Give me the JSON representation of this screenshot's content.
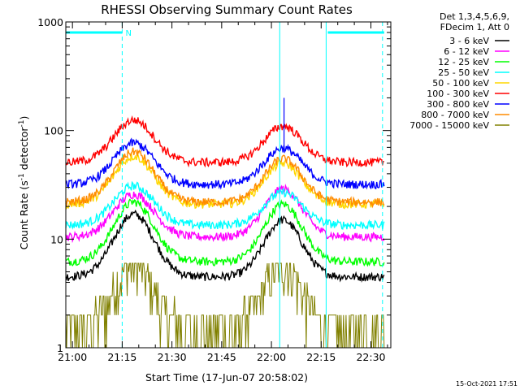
{
  "chart_data": {
    "type": "line",
    "title": "RHESSI Observing Summary Count Rates",
    "xlabel": "Start Time (17-Jun-07 20:58:02)",
    "ylabel_base": "Count Rate (s",
    "ylabel_sup": "-1",
    "ylabel_mid": " detector",
    "ylabel_sup2": "-1",
    "ylabel_end": ")",
    "xlim": [
      -2,
      96
    ],
    "ylim": [
      1,
      1000
    ],
    "yscale": "log",
    "x_ticks": [
      {
        "value": 0,
        "label": "21:00"
      },
      {
        "value": 15,
        "label": "21:15"
      },
      {
        "value": 30,
        "label": "21:30"
      },
      {
        "value": 45,
        "label": "21:45"
      },
      {
        "value": 60,
        "label": "22:00"
      },
      {
        "value": 75,
        "label": "22:15"
      },
      {
        "value": 90,
        "label": "22:30"
      }
    ],
    "y_ticks": [
      {
        "value": 1,
        "label": "1"
      },
      {
        "value": 10,
        "label": "10"
      },
      {
        "value": 100,
        "label": "100"
      },
      {
        "value": 1000,
        "label": "1000"
      }
    ],
    "legend_header": [
      "Det 1,3,4,5,6,9,",
      "FDecim 1, Att 0"
    ],
    "legend_placement": "right",
    "series": [
      {
        "name": "3 - 6 keV",
        "color": "#000000",
        "base": 4.5,
        "peak1": 17,
        "peak2": 15
      },
      {
        "name": "6 - 12 keV",
        "color": "#ff00ff",
        "base": 10.5,
        "peak1": 26,
        "peak2": 29
      },
      {
        "name": "12 - 25 keV",
        "color": "#00ff00",
        "base": 6.2,
        "peak1": 22,
        "peak2": 21
      },
      {
        "name": "25 - 50 keV",
        "color": "#00ffff",
        "base": 13.5,
        "peak1": 31,
        "peak2": 27
      },
      {
        "name": "50 - 100 keV",
        "color": "#ffd700",
        "base": 21,
        "peak1": 58,
        "peak2": 50
      },
      {
        "name": "100 - 300 keV",
        "color": "#ff0000",
        "base": 51,
        "peak1": 125,
        "peak2": 110
      },
      {
        "name": "300 - 800 keV",
        "color": "#0000ff",
        "base": 32,
        "peak1": 77,
        "peak2": 69
      },
      {
        "name": "800 - 7000 keV",
        "color": "#ff8c00",
        "base": 22,
        "peak1": 64,
        "peak2": 55
      },
      {
        "name": "7000 - 15000 keV",
        "color": "#808000",
        "base": 1.4,
        "peak1": 5.5,
        "peak2": 5.5
      }
    ],
    "peak_times": [
      18.5,
      63.5
    ],
    "segments": [
      [
        -2,
        94
      ]
    ],
    "annotations": [
      {
        "label": "N",
        "x": 16,
        "y": 800,
        "color": "#00ffff"
      }
    ],
    "horizontal_bars": [
      {
        "x1": -2,
        "x2": 15,
        "y": 800,
        "color": "#00ffff"
      },
      {
        "x1": 77,
        "x2": 94,
        "y": 800,
        "color": "#00ffff"
      }
    ],
    "vertical_lines": [
      {
        "x": -2,
        "style": "solid",
        "color": "#00ffff"
      },
      {
        "x": 15,
        "style": "dashed",
        "color": "#00ffff"
      },
      {
        "x": 62.5,
        "style": "solid",
        "color": "#00ffff"
      },
      {
        "x": 76.5,
        "style": "solid",
        "color": "#00ffff"
      },
      {
        "x": 93.5,
        "style": "dashed",
        "color": "#00ffff"
      }
    ],
    "spike": {
      "x": 63.8,
      "series": "300 - 800 keV",
      "value": 200
    },
    "timestamp": "15-Oct-2021 17:51",
    "grid": false
  }
}
